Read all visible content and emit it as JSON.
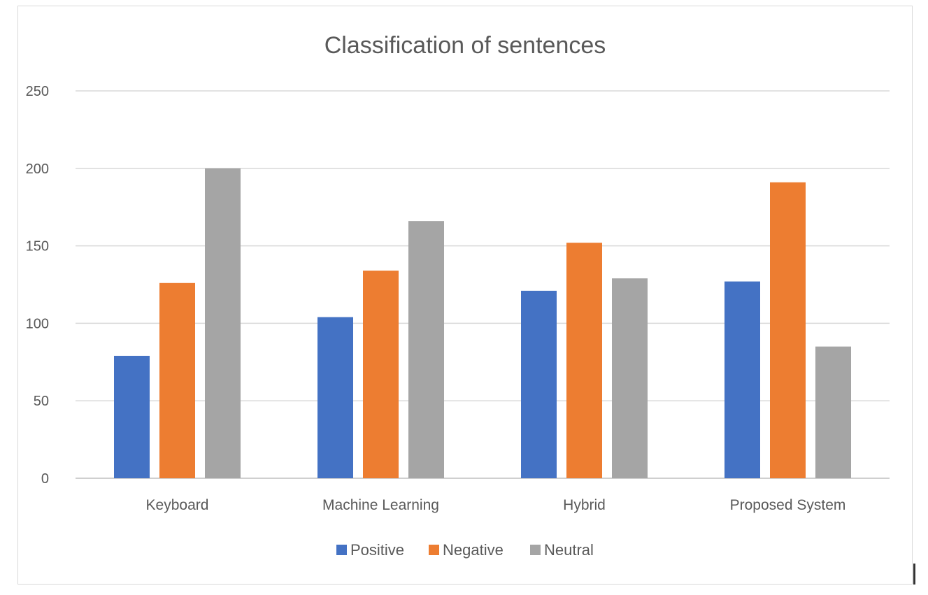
{
  "chart_data": {
    "type": "bar",
    "title": "Classification of sentences",
    "categories": [
      "Keyboard",
      "Machine Learning",
      "Hybrid",
      "Proposed System"
    ],
    "series": [
      {
        "name": "Positive",
        "color": "#4472c4",
        "values": [
          79,
          104,
          121,
          127
        ]
      },
      {
        "name": "Negative",
        "color": "#ed7d31",
        "values": [
          126,
          134,
          152,
          191
        ]
      },
      {
        "name": "Neutral",
        "color": "#a5a5a5",
        "values": [
          200,
          166,
          129,
          85
        ]
      }
    ],
    "ylim": [
      0,
      250
    ],
    "yticks": [
      "0",
      "50",
      "100",
      "150",
      "200",
      "250"
    ],
    "grid": true,
    "legend_position": "bottom"
  }
}
